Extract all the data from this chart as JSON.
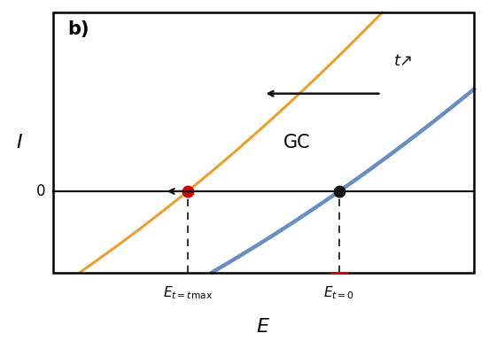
{
  "title_label": "b)",
  "xlabel": "E",
  "ylabel": "I",
  "zero_label": "0",
  "gc_label": "GC",
  "t_label": "t↗",
  "orange_curve_color": "#E8A030",
  "blue_curve_color": "#6A8FBF",
  "red_dot_color": "#CC0000",
  "black_dot_color": "#111111",
  "red_tick_color": "#CC0000",
  "arrow_color": "#111111",
  "dashed_line_color": "#111111",
  "background_color": "#ffffff",
  "xlim": [
    0,
    10
  ],
  "ylim": [
    -2.5,
    5.5
  ],
  "x_red_dot": 3.2,
  "x_black_dot": 6.8,
  "figsize": [
    5.52,
    3.85
  ],
  "dpi": 100
}
